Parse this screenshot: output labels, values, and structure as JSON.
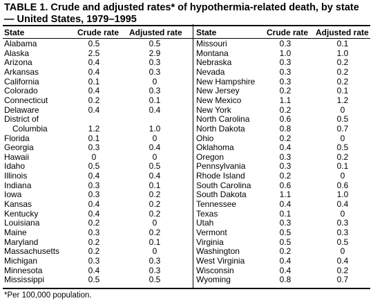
{
  "title": "TABLE 1. Crude and adjusted rates* of hypothermia-related death, by state — United States, 1979–1995",
  "headers": {
    "state": "State",
    "crude": "Crude rate",
    "adjusted": "Adjusted rate"
  },
  "left_rows": [
    {
      "state": "Alabama",
      "crude": "0.5",
      "adjusted": "0.5"
    },
    {
      "state": "Alaska",
      "crude": "2.5",
      "adjusted": "2.9"
    },
    {
      "state": "Arizona",
      "crude": "0.4",
      "adjusted": "0.3"
    },
    {
      "state": "Arkansas",
      "crude": "0.4",
      "adjusted": "0.3"
    },
    {
      "state": "California",
      "crude": "0.1",
      "adjusted": "0"
    },
    {
      "state": "Colorado",
      "crude": "0.4",
      "adjusted": "0.3"
    },
    {
      "state": "Connecticut",
      "crude": "0.2",
      "adjusted": "0.1"
    },
    {
      "state": "Delaware",
      "crude": "0.4",
      "adjusted": "0.4"
    },
    {
      "state": "District of",
      "state2": "Columbia",
      "crude": "1.2",
      "adjusted": "1.0"
    },
    {
      "state": "Florida",
      "crude": "0.1",
      "adjusted": "0"
    },
    {
      "state": "Georgia",
      "crude": "0.3",
      "adjusted": "0.4"
    },
    {
      "state": "Hawaii",
      "crude": "0",
      "adjusted": "0"
    },
    {
      "state": "Idaho",
      "crude": "0.5",
      "adjusted": "0.5"
    },
    {
      "state": "Illinois",
      "crude": "0.4",
      "adjusted": "0.4"
    },
    {
      "state": "Indiana",
      "crude": "0.3",
      "adjusted": "0.1"
    },
    {
      "state": "Iowa",
      "crude": "0.3",
      "adjusted": "0.2"
    },
    {
      "state": "Kansas",
      "crude": "0.4",
      "adjusted": "0.2"
    },
    {
      "state": "Kentucky",
      "crude": "0.4",
      "adjusted": "0.2"
    },
    {
      "state": "Louisiana",
      "crude": "0.2",
      "adjusted": "0"
    },
    {
      "state": "Maine",
      "crude": "0.3",
      "adjusted": "0.2"
    },
    {
      "state": "Maryland",
      "crude": "0.2",
      "adjusted": "0.1"
    },
    {
      "state": "Massachusetts",
      "crude": "0.2",
      "adjusted": "0"
    },
    {
      "state": "Michigan",
      "crude": "0.3",
      "adjusted": "0.3"
    },
    {
      "state": "Minnesota",
      "crude": "0.4",
      "adjusted": "0.3"
    },
    {
      "state": "Mississippi",
      "crude": "0.5",
      "adjusted": "0.5"
    }
  ],
  "right_rows": [
    {
      "state": "Missouri",
      "crude": "0.3",
      "adjusted": "0.1"
    },
    {
      "state": "Montana",
      "crude": "1.0",
      "adjusted": "1.0"
    },
    {
      "state": "Nebraska",
      "crude": "0.3",
      "adjusted": "0.2"
    },
    {
      "state": "Nevada",
      "crude": "0.3",
      "adjusted": "0.2"
    },
    {
      "state": "New Hampshire",
      "crude": "0.3",
      "adjusted": "0.2"
    },
    {
      "state": "New Jersey",
      "crude": "0.2",
      "adjusted": "0.1"
    },
    {
      "state": "New Mexico",
      "crude": "1.1",
      "adjusted": "1.2"
    },
    {
      "state": "New York",
      "crude": "0.2",
      "adjusted": "0"
    },
    {
      "state": "North Carolina",
      "crude": "0.6",
      "adjusted": "0.5"
    },
    {
      "state": "North Dakota",
      "crude": "0.8",
      "adjusted": "0.7"
    },
    {
      "state": "Ohio",
      "crude": "0.2",
      "adjusted": "0"
    },
    {
      "state": "Oklahoma",
      "crude": "0.4",
      "adjusted": "0.5"
    },
    {
      "state": "Oregon",
      "crude": "0.3",
      "adjusted": "0.2"
    },
    {
      "state": "Pennsylvania",
      "crude": "0.3",
      "adjusted": "0.1"
    },
    {
      "state": "Rhode Island",
      "crude": "0.2",
      "adjusted": "0"
    },
    {
      "state": "South Carolina",
      "crude": "0.6",
      "adjusted": "0.6"
    },
    {
      "state": "South Dakota",
      "crude": "1.1",
      "adjusted": "1.0"
    },
    {
      "state": "Tennessee",
      "crude": "0.4",
      "adjusted": "0.4"
    },
    {
      "state": "Texas",
      "crude": "0.1",
      "adjusted": "0"
    },
    {
      "state": "Utah",
      "crude": "0.3",
      "adjusted": "0.3"
    },
    {
      "state": "Vermont",
      "crude": "0.5",
      "adjusted": "0.3"
    },
    {
      "state": "Virginia",
      "crude": "0.5",
      "adjusted": "0.5"
    },
    {
      "state": "Washington",
      "crude": "0.2",
      "adjusted": "0"
    },
    {
      "state": "West Virginia",
      "crude": "0.4",
      "adjusted": "0.4"
    },
    {
      "state": "Wisconsin",
      "crude": "0.4",
      "adjusted": "0.2"
    },
    {
      "state": "Wyoming",
      "crude": "0.8",
      "adjusted": "0.7"
    }
  ],
  "footnote": "*Per 100,000 population."
}
